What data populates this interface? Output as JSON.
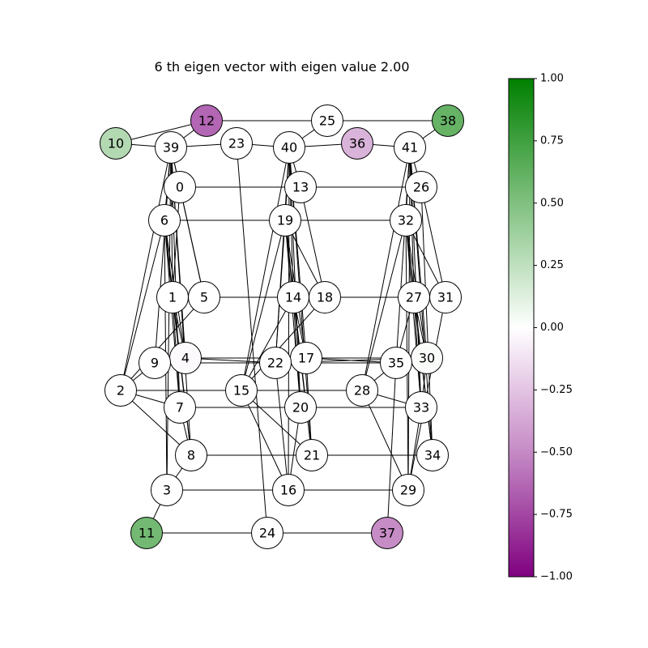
{
  "title": "6 th eigen vector with eigen value 2.00",
  "colorbar": {
    "min": -1.0,
    "max": 1.0,
    "ticks": [
      "1.00",
      "0.75",
      "0.50",
      "0.25",
      "0.00",
      "−0.25",
      "−0.50",
      "−0.75",
      "−1.00"
    ],
    "tick_values": [
      1.0,
      0.75,
      0.5,
      0.25,
      0.0,
      -0.25,
      -0.5,
      -0.75,
      -1.0
    ],
    "colormap": "PRGn",
    "color_neg": "#800080",
    "color_zero": "#ffffff",
    "color_pos": "#008000"
  },
  "nodes": [
    {
      "id": "0",
      "value": 0.0
    },
    {
      "id": "1",
      "value": 0.0
    },
    {
      "id": "2",
      "value": 0.0
    },
    {
      "id": "3",
      "value": 0.0
    },
    {
      "id": "4",
      "value": -0.02
    },
    {
      "id": "5",
      "value": 0.0
    },
    {
      "id": "6",
      "value": 0.0
    },
    {
      "id": "7",
      "value": 0.0
    },
    {
      "id": "8",
      "value": 0.0
    },
    {
      "id": "9",
      "value": 0.0
    },
    {
      "id": "10",
      "value": 0.3
    },
    {
      "id": "11",
      "value": 0.55
    },
    {
      "id": "12",
      "value": -0.6
    },
    {
      "id": "13",
      "value": 0.0
    },
    {
      "id": "14",
      "value": 0.0
    },
    {
      "id": "15",
      "value": 0.0
    },
    {
      "id": "16",
      "value": 0.0
    },
    {
      "id": "17",
      "value": 0.0
    },
    {
      "id": "18",
      "value": 0.0
    },
    {
      "id": "19",
      "value": 0.0
    },
    {
      "id": "20",
      "value": 0.0
    },
    {
      "id": "21",
      "value": 0.0
    },
    {
      "id": "22",
      "value": 0.0
    },
    {
      "id": "23",
      "value": 0.0
    },
    {
      "id": "24",
      "value": 0.0
    },
    {
      "id": "25",
      "value": 0.0
    },
    {
      "id": "26",
      "value": 0.0
    },
    {
      "id": "27",
      "value": 0.0
    },
    {
      "id": "28",
      "value": 0.0
    },
    {
      "id": "29",
      "value": 0.0
    },
    {
      "id": "30",
      "value": 0.02
    },
    {
      "id": "31",
      "value": 0.0
    },
    {
      "id": "32",
      "value": 0.0
    },
    {
      "id": "33",
      "value": 0.0
    },
    {
      "id": "34",
      "value": 0.0
    },
    {
      "id": "35",
      "value": 0.0
    },
    {
      "id": "36",
      "value": -0.3
    },
    {
      "id": "37",
      "value": -0.45
    },
    {
      "id": "38",
      "value": 0.6
    },
    {
      "id": "39",
      "value": 0.0
    },
    {
      "id": "40",
      "value": 0.0
    },
    {
      "id": "41",
      "value": 0.0
    }
  ],
  "edges": [
    [
      "0",
      "13"
    ],
    [
      "13",
      "26"
    ],
    [
      "6",
      "19"
    ],
    [
      "19",
      "32"
    ],
    [
      "5",
      "14"
    ],
    [
      "14",
      "18"
    ],
    [
      "18",
      "27"
    ],
    [
      "2",
      "15"
    ],
    [
      "15",
      "28"
    ],
    [
      "7",
      "20"
    ],
    [
      "20",
      "33"
    ],
    [
      "8",
      "21"
    ],
    [
      "21",
      "34"
    ],
    [
      "3",
      "16"
    ],
    [
      "16",
      "29"
    ],
    [
      "11",
      "24"
    ],
    [
      "24",
      "37"
    ],
    [
      "12",
      "25"
    ],
    [
      "25",
      "38"
    ],
    [
      "10",
      "39"
    ],
    [
      "39",
      "23"
    ],
    [
      "23",
      "40"
    ],
    [
      "40",
      "36"
    ],
    [
      "36",
      "41"
    ],
    [
      "10",
      "12"
    ],
    [
      "12",
      "39"
    ],
    [
      "25",
      "40"
    ],
    [
      "41",
      "38"
    ],
    [
      "4",
      "17"
    ],
    [
      "9",
      "22"
    ],
    [
      "22",
      "35"
    ],
    [
      "17",
      "30"
    ],
    [
      "4",
      "22"
    ],
    [
      "22",
      "30"
    ],
    [
      "17",
      "35"
    ],
    [
      "39",
      "0"
    ],
    [
      "39",
      "6"
    ],
    [
      "39",
      "1"
    ],
    [
      "39",
      "5"
    ],
    [
      "39",
      "9"
    ],
    [
      "39",
      "4"
    ],
    [
      "39",
      "7"
    ],
    [
      "39",
      "8"
    ],
    [
      "39",
      "3"
    ],
    [
      "39",
      "2"
    ],
    [
      "0",
      "6"
    ],
    [
      "0",
      "1"
    ],
    [
      "0",
      "5"
    ],
    [
      "6",
      "1"
    ],
    [
      "6",
      "4"
    ],
    [
      "6",
      "7"
    ],
    [
      "6",
      "8"
    ],
    [
      "6",
      "3"
    ],
    [
      "6",
      "2"
    ],
    [
      "1",
      "4"
    ],
    [
      "1",
      "7"
    ],
    [
      "1",
      "8"
    ],
    [
      "5",
      "2"
    ],
    [
      "9",
      "2"
    ],
    [
      "9",
      "4"
    ],
    [
      "2",
      "7"
    ],
    [
      "2",
      "8"
    ],
    [
      "7",
      "8"
    ],
    [
      "8",
      "3"
    ],
    [
      "3",
      "11"
    ],
    [
      "40",
      "13"
    ],
    [
      "40",
      "19"
    ],
    [
      "40",
      "14"
    ],
    [
      "40",
      "17"
    ],
    [
      "40",
      "20"
    ],
    [
      "40",
      "21"
    ],
    [
      "40",
      "16"
    ],
    [
      "40",
      "15"
    ],
    [
      "40",
      "22"
    ],
    [
      "13",
      "18"
    ],
    [
      "19",
      "14"
    ],
    [
      "19",
      "18"
    ],
    [
      "19",
      "17"
    ],
    [
      "19",
      "20"
    ],
    [
      "19",
      "21"
    ],
    [
      "19",
      "15"
    ],
    [
      "19",
      "22"
    ],
    [
      "14",
      "17"
    ],
    [
      "14",
      "20"
    ],
    [
      "14",
      "21"
    ],
    [
      "14",
      "15"
    ],
    [
      "18",
      "15"
    ],
    [
      "17",
      "21"
    ],
    [
      "15",
      "16"
    ],
    [
      "15",
      "21"
    ],
    [
      "22",
      "16"
    ],
    [
      "20",
      "16"
    ],
    [
      "23",
      "24"
    ],
    [
      "41",
      "26"
    ],
    [
      "41",
      "32"
    ],
    [
      "41",
      "27"
    ],
    [
      "41",
      "30"
    ],
    [
      "41",
      "33"
    ],
    [
      "41",
      "34"
    ],
    [
      "41",
      "29"
    ],
    [
      "41",
      "28"
    ],
    [
      "41",
      "35"
    ],
    [
      "26",
      "31"
    ],
    [
      "26",
      "34"
    ],
    [
      "32",
      "27"
    ],
    [
      "32",
      "31"
    ],
    [
      "32",
      "30"
    ],
    [
      "32",
      "33"
    ],
    [
      "32",
      "34"
    ],
    [
      "32",
      "29"
    ],
    [
      "32",
      "28"
    ],
    [
      "27",
      "30"
    ],
    [
      "27",
      "33"
    ],
    [
      "27",
      "34"
    ],
    [
      "27",
      "35"
    ],
    [
      "31",
      "29"
    ],
    [
      "30",
      "33"
    ],
    [
      "35",
      "28"
    ],
    [
      "28",
      "33"
    ],
    [
      "28",
      "29"
    ],
    [
      "35",
      "37"
    ],
    [
      "33",
      "29"
    ]
  ]
}
